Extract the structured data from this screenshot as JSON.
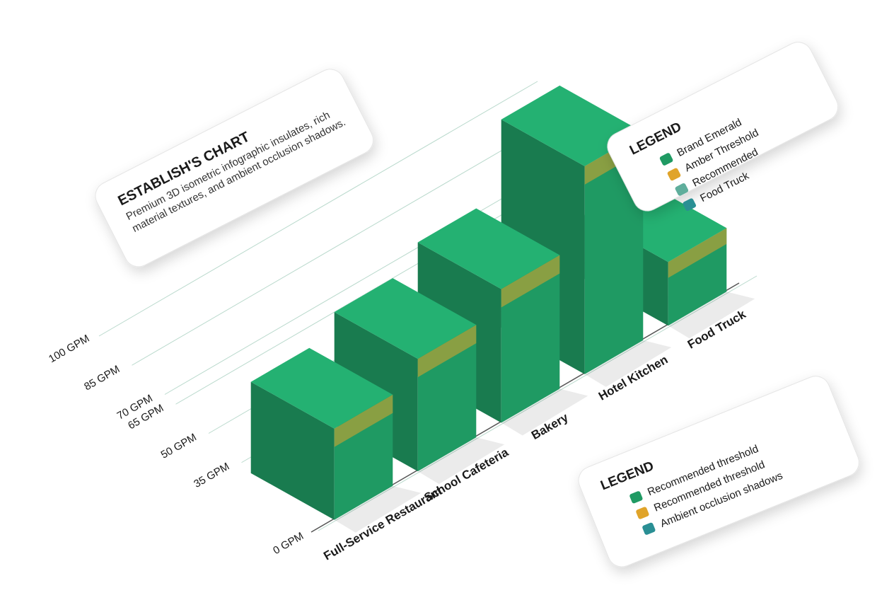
{
  "chart_data": {
    "type": "isometric-bar",
    "title": "ESTABLISH'S CHART",
    "subtitle": "Premium 3D isometric infographic insulates, rich material textures, and ambient occlusion shadows.",
    "categories": [
      "Full-Service Restaurant",
      "School Cafeteria",
      "Bakery",
      "Hotel Kitchen",
      "Food Truck"
    ],
    "values": [
      43,
      53,
      63,
      98,
      30
    ],
    "color": "#1f9a63",
    "accent": "#e0a42a",
    "ylim": [
      0,
      100
    ],
    "yticks": [
      {
        "value": 0,
        "label": "0 GPM"
      },
      {
        "value": 35,
        "label": "35 GPM"
      },
      {
        "value": 50,
        "label": "50 GPM"
      },
      {
        "value": 65,
        "label": "65 GPM"
      },
      {
        "value": 70,
        "label": "70 GPM"
      },
      {
        "value": 85,
        "label": "85 GPM"
      },
      {
        "value": 100,
        "label": "100 GPM"
      }
    ],
    "grid": true
  },
  "legends": [
    {
      "title": "LEGEND",
      "items": [
        {
          "label": "Brand Emerald",
          "color": "#1f9a63"
        },
        {
          "label": "Amber Threshold",
          "color": "#e0a42a"
        },
        {
          "label": "Recommended",
          "color": "#5fae9c"
        },
        {
          "label": "Food Truck",
          "color": "#2a8f94"
        }
      ]
    },
    {
      "title": "LEGEND",
      "items": [
        {
          "label": "Recommended threshold",
          "color": "#1f9a63"
        },
        {
          "label": "Recommended threshold",
          "color": "#e0a42a"
        },
        {
          "label": "Ambient occlusion shadows",
          "color": "#2a8f94"
        }
      ]
    }
  ]
}
